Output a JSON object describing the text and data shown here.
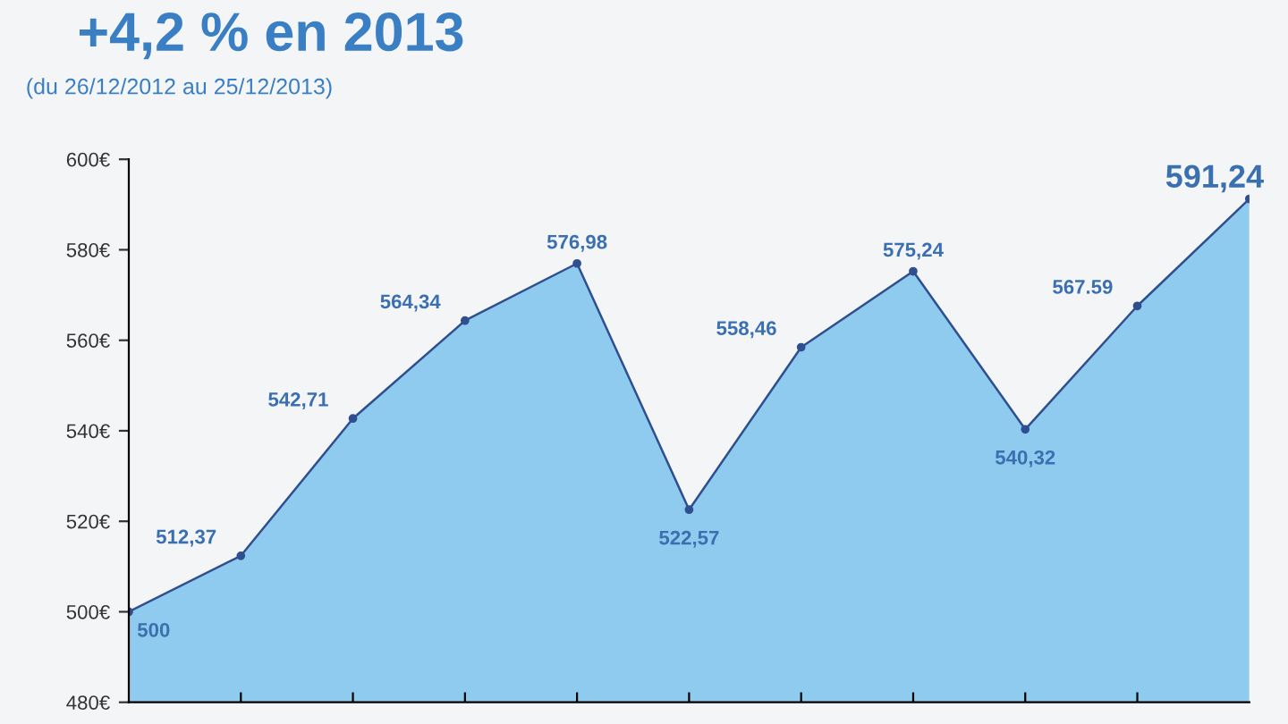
{
  "chart_data": {
    "type": "area",
    "title": "+4,2 % en 2013",
    "subtitle": "(du 26/12/2012 au 25/12/2013)",
    "categories": [
      null,
      null,
      null,
      null,
      null,
      null,
      null,
      null,
      null,
      null,
      null
    ],
    "series": [
      {
        "color": "#8ecbee",
        "values": [
          500,
          512.37,
          542.71,
          564.34,
          576.98,
          522.57,
          558.46,
          575.24,
          540.32,
          567.59,
          591.24
        ]
      }
    ],
    "value_labels": [
      "500",
      "512,37",
      "542,71",
      "564,34",
      "576,98",
      "522,57",
      "558,46",
      "575,24",
      "540,32",
      "567.59",
      "591,24"
    ],
    "ylim": [
      480,
      600
    ],
    "yticks": [
      {
        "value": 480,
        "label": "480€"
      },
      {
        "value": 500,
        "label": "500€"
      },
      {
        "value": 520,
        "label": "520€"
      },
      {
        "value": 540,
        "label": "540€"
      },
      {
        "value": 560,
        "label": "560€"
      },
      {
        "value": 580,
        "label": "580€"
      },
      {
        "value": 600,
        "label": "600€"
      }
    ],
    "grid": false,
    "marker": "circle",
    "legend": false
  }
}
